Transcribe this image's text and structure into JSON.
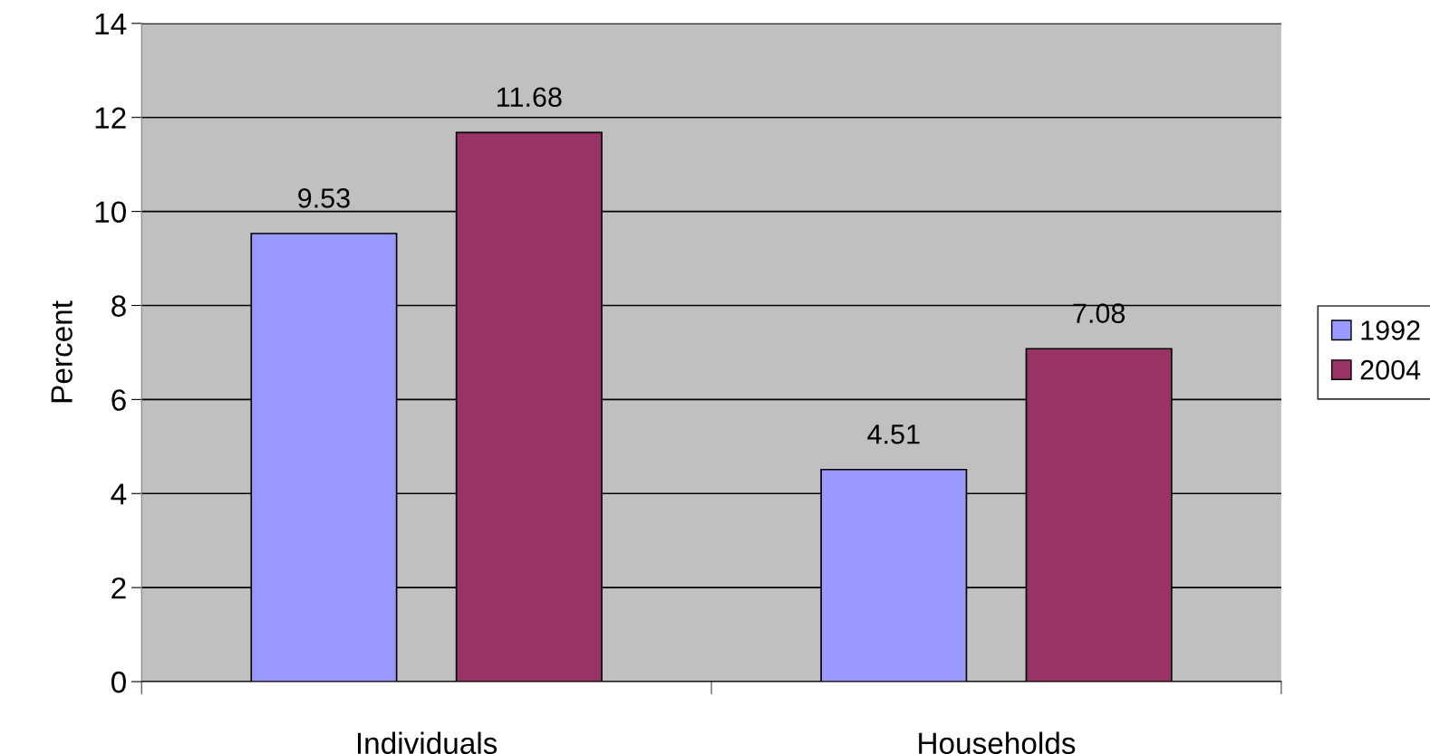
{
  "chart_data": {
    "type": "bar",
    "ylabel": "Percent",
    "categories": [
      "Individuals",
      "Households"
    ],
    "series": [
      {
        "name": "1992",
        "color": "#9999ff",
        "values": [
          9.53,
          4.51
        ]
      },
      {
        "name": "2004",
        "color": "#993366",
        "values": [
          11.68,
          7.08
        ]
      }
    ],
    "ylim": [
      0,
      14
    ],
    "yticks": [
      0,
      2,
      4,
      6,
      8,
      10,
      12,
      14
    ],
    "grid": "y",
    "legend": "right",
    "data_labels": true
  }
}
